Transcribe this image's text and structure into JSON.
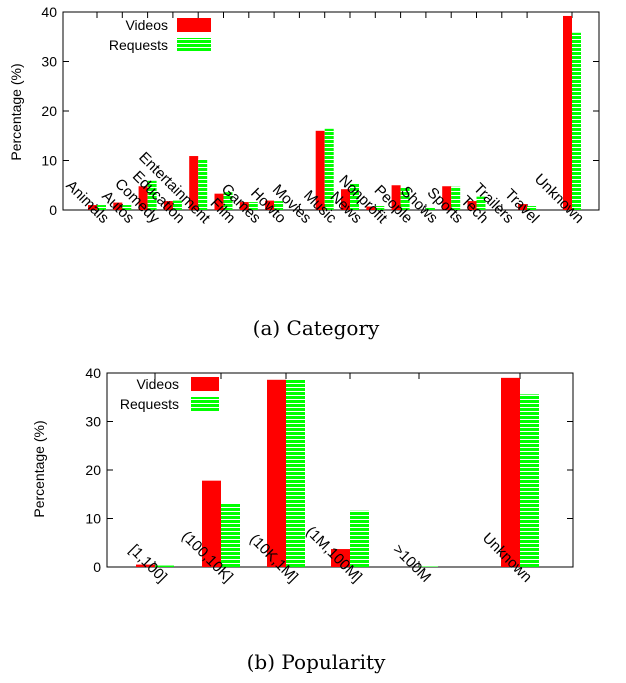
{
  "chart_data": [
    {
      "type": "bar",
      "title": "",
      "caption": "(a) Category",
      "xlabel": "",
      "ylabel": "Percentage (%)",
      "ylim": [
        0,
        40
      ],
      "yticks": [
        0,
        10,
        20,
        30,
        40
      ],
      "legend_position": "top-left",
      "categories": [
        "Animals",
        "Autos",
        "Comedy",
        "Education",
        "Entertainment",
        "Film",
        "Games",
        "Howto",
        "Movies",
        "Music",
        "News",
        "Nonprofit",
        "People",
        "Shows",
        "Sports",
        "Tech",
        "Trailers",
        "Travel",
        "Unknown"
      ],
      "series": [
        {
          "name": "Videos",
          "color": "#ff0000",
          "values": [
            1.0,
            1.5,
            4.8,
            1.8,
            10.9,
            3.3,
            1.6,
            1.9,
            0,
            16.0,
            4.2,
            0.7,
            5.0,
            0,
            4.8,
            1.8,
            0,
            1.2,
            39.2
          ]
        },
        {
          "name": "Requests",
          "color": "#00ff00",
          "values": [
            1.0,
            1.0,
            5.9,
            1.9,
            10.3,
            3.6,
            1.6,
            1.8,
            0,
            16.4,
            5.3,
            0.8,
            4.5,
            0.6,
            4.7,
            2.7,
            0,
            0.8,
            35.8
          ]
        }
      ]
    },
    {
      "type": "bar",
      "title": "",
      "caption": "(b) Popularity",
      "xlabel": "",
      "ylabel": "Percentage (%)",
      "ylim": [
        0,
        40
      ],
      "yticks": [
        0,
        10,
        20,
        30,
        40
      ],
      "legend_position": "top-left",
      "categories": [
        "[1,100]",
        "(100,10K]",
        "(10K,1M]",
        "(1M,100M]",
        ">100M",
        "Unknown"
      ],
      "series": [
        {
          "name": "Videos",
          "color": "#ff0000",
          "values": [
            0.5,
            17.8,
            38.6,
            3.7,
            0,
            39.0
          ]
        },
        {
          "name": "Requests",
          "color": "#00ff00",
          "values": [
            0.3,
            13.1,
            38.6,
            11.6,
            0.1,
            35.6
          ]
        }
      ]
    }
  ]
}
